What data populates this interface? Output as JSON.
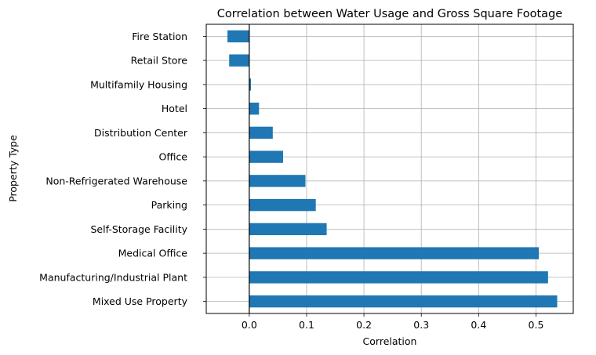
{
  "chart_data": {
    "type": "bar",
    "orientation": "horizontal",
    "title": "Correlation between Water Usage and Gross Square Footage",
    "xlabel": "Correlation",
    "ylabel": "Property Type",
    "categories": [
      "Mixed Use Property",
      "Manufacturing/Industrial Plant",
      "Medical Office",
      "Self-Storage Facility",
      "Parking",
      "Non-Refrigerated Warehouse",
      "Office",
      "Distribution Center",
      "Hotel",
      "Multifamily Housing",
      "Retail Store",
      "Fire Station"
    ],
    "values": [
      0.537,
      0.521,
      0.505,
      0.135,
      0.116,
      0.098,
      0.059,
      0.041,
      0.017,
      0.003,
      -0.035,
      -0.038
    ],
    "xlim": [
      -0.075,
      0.565
    ],
    "xticks": [
      0.0,
      0.1,
      0.2,
      0.3,
      0.4,
      0.5
    ],
    "xtick_labels": [
      "0.0",
      "0.1",
      "0.2",
      "0.3",
      "0.4",
      "0.5"
    ],
    "grid": true,
    "zero_line": true,
    "bar_color": "#1f77b4",
    "grid_color": "#b0b0b0"
  }
}
